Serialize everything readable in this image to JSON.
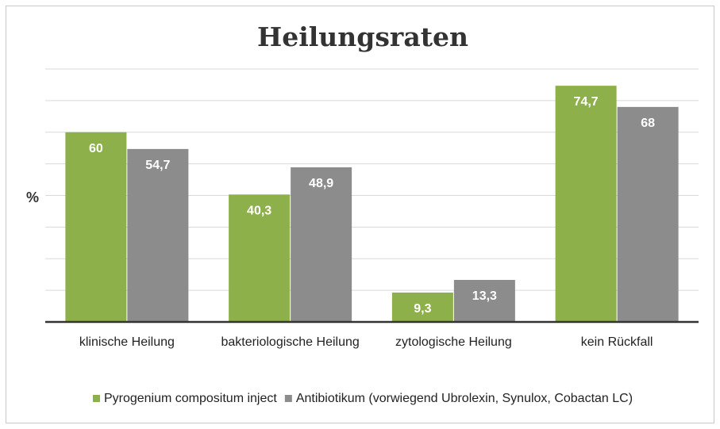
{
  "chart_data": {
    "type": "bar",
    "title": "Heilungsraten",
    "ylabel": "%",
    "xlabel": "",
    "ylim": [
      0,
      80
    ],
    "grid": true,
    "legend_position": "bottom",
    "categories": [
      "klinische Heilung",
      "bakteriologische Heilung",
      "zytologische Heilung",
      "kein Rückfall"
    ],
    "series": [
      {
        "name": "Pyrogenium compositum inject",
        "color": "#8db04a",
        "values": [
          60,
          40.3,
          9.3,
          74.7
        ],
        "labels": [
          "60",
          "40,3",
          "9,3",
          "74,7"
        ]
      },
      {
        "name": "Antibiotikum (vorwiegend Ubrolexin, Synulox, Cobactan LC)",
        "color": "#8c8c8c",
        "values": [
          54.7,
          48.9,
          13.3,
          68
        ],
        "labels": [
          "54,7",
          "48,9",
          "13,3",
          "68"
        ]
      }
    ]
  }
}
